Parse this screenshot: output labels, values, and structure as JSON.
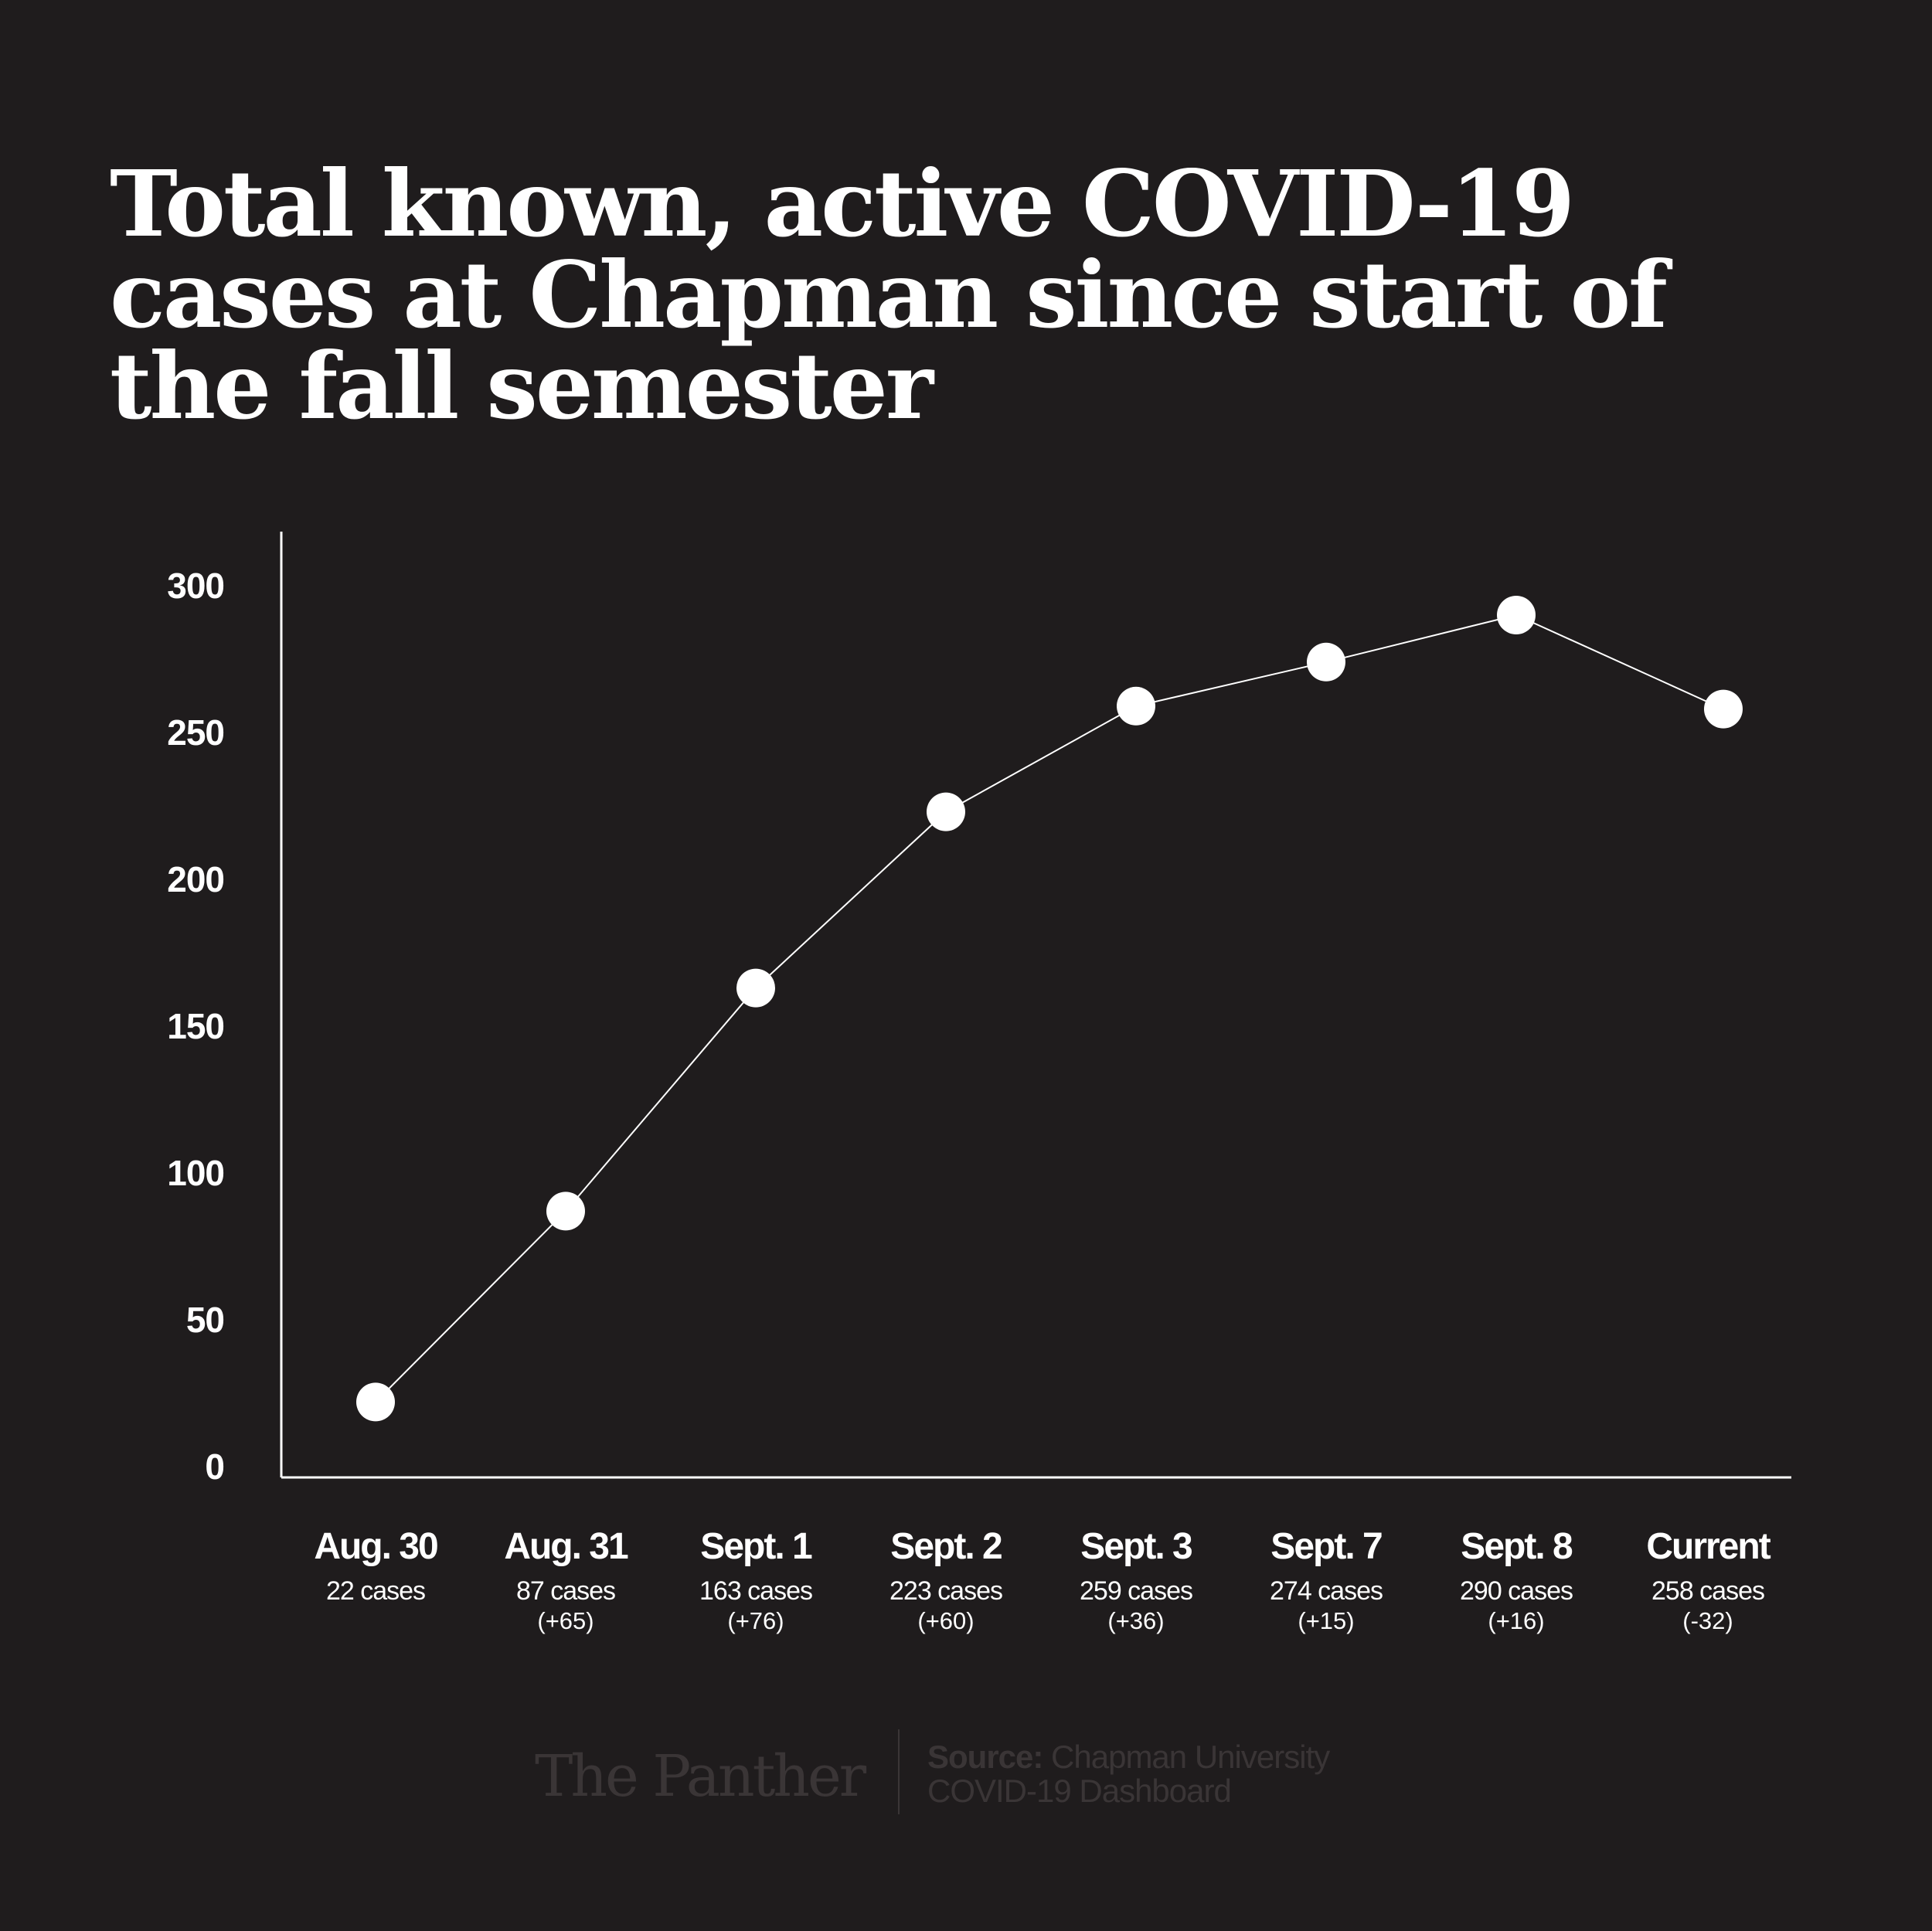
{
  "title_lines": [
    "Total known, active COVID-19",
    "cases at Chapman since start of",
    "the fall semester"
  ],
  "chart_data": {
    "type": "line",
    "title": "Total known, active COVID-19 cases at Chapman since start of the fall semester",
    "xlabel": "",
    "ylabel": "",
    "ylim": [
      0,
      300
    ],
    "yticks": [
      "0",
      "50",
      "100",
      "150",
      "200",
      "250",
      "300"
    ],
    "categories": [
      "Aug. 30",
      "Aug. 31",
      "Sept. 1",
      "Sept. 2",
      "Sept. 3",
      "Sept. 7",
      "Sept. 8",
      "Current"
    ],
    "case_labels": [
      "22 cases",
      "87 cases",
      "163 cases",
      "223 cases",
      "259 cases",
      "274 cases",
      "290 cases",
      "258 cases"
    ],
    "change_labels": [
      "",
      "(+65)",
      "(+76)",
      "(+60)",
      "(+36)",
      "(+15)",
      "(+16)",
      "(-32)"
    ],
    "values": [
      22,
      87,
      163,
      223,
      259,
      274,
      290,
      258
    ],
    "grid": false,
    "line_color": "#ffffff",
    "background_color": "#1f1c1d"
  },
  "footer": {
    "brand": "The Panther",
    "source_label": "Source:",
    "source_line1": " Chapman University",
    "source_line2": "COVID-19 Dashboard",
    "text_color": "#3a3536"
  }
}
